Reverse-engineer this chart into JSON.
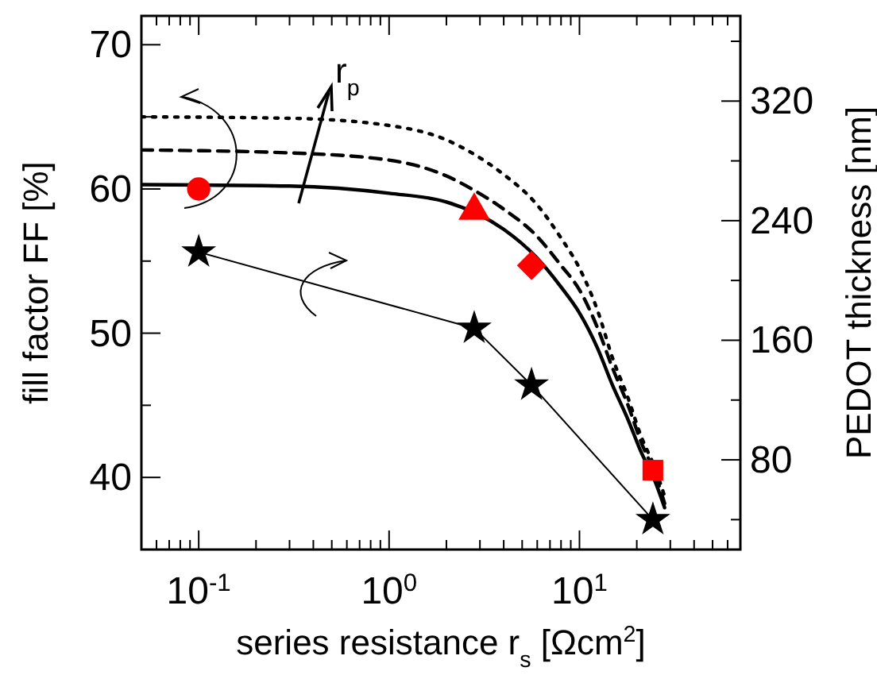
{
  "chart_data": {
    "type": "line",
    "xlabel": "series resistance r$_{s}$ [Ωcm$^{2}$]",
    "ylabel": "fill factor FF [%]",
    "y2label": "PEDOT thickness [nm]",
    "log": "x",
    "xlim": [
      0.05,
      70
    ],
    "ylim": [
      35,
      72
    ],
    "y2lim": [
      20,
      377
    ],
    "xticks": [
      {
        "value": 0.06,
        "label": null
      },
      {
        "value": 0.07,
        "label": null
      },
      {
        "value": 0.08,
        "label": null
      },
      {
        "value": 0.09,
        "label": null
      },
      {
        "value": 0.1,
        "label": "10$^{-1}$"
      },
      {
        "value": 0.2,
        "label": null
      },
      {
        "value": 0.3,
        "label": null
      },
      {
        "value": 0.4,
        "label": null
      },
      {
        "value": 0.5,
        "label": null
      },
      {
        "value": 0.6,
        "label": null
      },
      {
        "value": 0.7,
        "label": null
      },
      {
        "value": 0.8,
        "label": null
      },
      {
        "value": 0.9,
        "label": null
      },
      {
        "value": 1,
        "label": "10$^{0}$"
      },
      {
        "value": 2,
        "label": null
      },
      {
        "value": 3,
        "label": null
      },
      {
        "value": 4,
        "label": null
      },
      {
        "value": 5,
        "label": null
      },
      {
        "value": 6,
        "label": null
      },
      {
        "value": 7,
        "label": null
      },
      {
        "value": 8,
        "label": null
      },
      {
        "value": 9,
        "label": null
      },
      {
        "value": 10,
        "label": "10$^{1}$"
      },
      {
        "value": 20,
        "label": null
      },
      {
        "value": 30,
        "label": null
      },
      {
        "value": 40,
        "label": null
      },
      {
        "value": 50,
        "label": null
      },
      {
        "value": 60,
        "label": null
      }
    ],
    "yticks": [
      40,
      {
        "value": 45,
        "label": null
      },
      50,
      {
        "value": 55,
        "label": null
      },
      60,
      {
        "value": 65,
        "label": null
      },
      70
    ],
    "y2ticks": [
      {
        "value": 40,
        "label": null
      },
      80,
      {
        "value": 120,
        "label": null
      },
      160,
      {
        "value": 200,
        "label": null
      },
      240,
      {
        "value": 280,
        "label": null
      },
      320,
      {
        "value": 360,
        "label": null
      }
    ],
    "annotations": [
      "r$_{p}$"
    ],
    "series": [
      {
        "line_style": "dotted",
        "marker": "none",
        "color": "#000000",
        "x": [
          0.05,
          0.3,
          1,
          2,
          2.8,
          4,
          5.9,
          8,
          10,
          12.5,
          14.9,
          18,
          21,
          25,
          28
        ],
        "values": [
          65.0,
          64.9,
          64.4,
          63.4,
          62.4,
          61.0,
          59.0,
          56.6,
          54.5,
          51.5,
          48.3,
          45.5,
          42.9,
          40.6,
          38.7
        ]
      },
      {
        "line_style": "dashed",
        "marker": "none",
        "color": "#000000",
        "x": [
          0.05,
          0.3,
          1,
          2,
          2.8,
          4,
          5.9,
          8,
          10,
          12.5,
          14.9,
          18,
          21,
          25,
          28
        ],
        "values": [
          62.7,
          62.5,
          62.0,
          60.9,
          59.9,
          58.6,
          56.8,
          54.7,
          53.0,
          50.3,
          47.6,
          45.0,
          42.5,
          40.2,
          38.2
        ]
      },
      {
        "line_style": "solid",
        "marker": "none",
        "color": "#000000",
        "x": [
          0.05,
          0.3,
          1,
          2,
          4,
          5.9,
          8,
          10,
          12.5,
          14.9,
          18,
          21,
          25,
          28
        ],
        "values": [
          60.3,
          60.2,
          59.7,
          59.1,
          57.2,
          55.3,
          53.2,
          51.4,
          48.9,
          46.4,
          44.0,
          41.8,
          39.7,
          37.9
        ]
      },
      {
        "type": "scatter",
        "marker": "circle",
        "color": "#ff0000",
        "x": [
          0.1
        ],
        "values": [
          60
        ]
      },
      {
        "type": "scatter",
        "marker": "triangle",
        "color": "#ff0000",
        "x": [
          2.8
        ],
        "values": [
          58.5
        ]
      },
      {
        "type": "scatter",
        "marker": "diamond",
        "color": "#ff0000",
        "x": [
          5.6
        ],
        "values": [
          54.7
        ]
      },
      {
        "type": "scatter",
        "marker": "square",
        "color": "#ff0000",
        "x": [
          24.3
        ],
        "values": [
          40.5
        ]
      },
      {
        "type": "line",
        "axis": "y2",
        "marker": "star",
        "line_style": "solid",
        "color": "#000000",
        "x": [
          0.1,
          2.8,
          5.6,
          24.3
        ],
        "values": [
          219,
          168,
          130,
          40
        ]
      }
    ]
  }
}
